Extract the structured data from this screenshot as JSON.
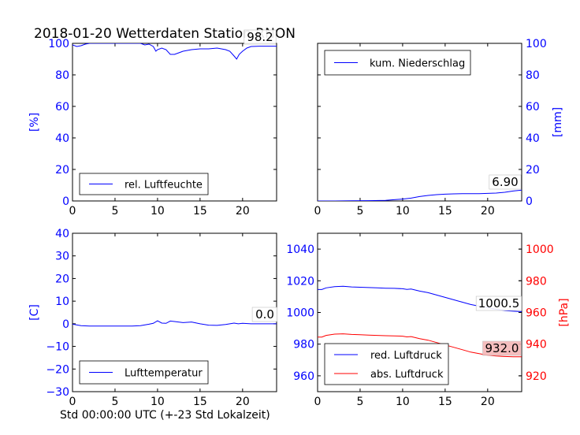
{
  "figure": {
    "title": "2018-01-20 Wetterdaten Station RNON",
    "xlabel": "Std 00:00:00 UTC (+-23 Std Lokalzeit)"
  },
  "chart_data": [
    {
      "id": "humidity",
      "type": "line",
      "ylabel": "[%]",
      "ylim": [
        0,
        100
      ],
      "yticks": [
        0,
        20,
        40,
        60,
        80,
        100
      ],
      "xlim": [
        0,
        24
      ],
      "xticks": [
        0,
        5,
        10,
        15,
        20
      ],
      "legend_position": "lower-left",
      "annotation": "98.2",
      "series": [
        {
          "name": "rel. Luftfeuchte",
          "color": "#0000ff",
          "x": [
            0,
            0.5,
            1,
            1.5,
            2,
            3,
            4,
            5,
            6,
            7,
            8,
            8.5,
            9,
            9.5,
            9.8,
            10,
            10.5,
            11,
            11.5,
            12,
            12.5,
            13,
            14,
            15,
            16,
            17,
            18,
            18.5,
            19,
            19.3,
            19.6,
            20,
            20.5,
            21,
            22,
            23,
            24
          ],
          "values": [
            99,
            98,
            98.5,
            99.5,
            100,
            100,
            100,
            100,
            100,
            100,
            100,
            99,
            99.5,
            98,
            95,
            96,
            97,
            96,
            93,
            93,
            94,
            95,
            96,
            96.5,
            96.5,
            97,
            96,
            95,
            92,
            90,
            93,
            95,
            97,
            98,
            98.2,
            98.2,
            98.2
          ]
        }
      ]
    },
    {
      "id": "precipitation",
      "type": "line",
      "ylabel": "[mm]",
      "ylim": [
        0,
        100
      ],
      "yticks": [
        0,
        20,
        40,
        60,
        80,
        100
      ],
      "xlim": [
        0,
        24
      ],
      "xticks": [
        0,
        5,
        10,
        15,
        20
      ],
      "y_axis_side": "right",
      "legend_position": "top-left",
      "annotation": "6.90",
      "series": [
        {
          "name": "kum. Niederschlag",
          "color": "#0000ff",
          "x": [
            0,
            2,
            4,
            6,
            8,
            9,
            10,
            11,
            12,
            13,
            14,
            15,
            16,
            17,
            18,
            19,
            20,
            21,
            22,
            23,
            24
          ],
          "values": [
            0,
            0,
            0.1,
            0.2,
            0.4,
            0.8,
            1.2,
            1.8,
            2.8,
            3.5,
            4,
            4.3,
            4.5,
            4.6,
            4.6,
            4.6,
            4.8,
            5,
            5.5,
            6.3,
            6.9
          ]
        }
      ]
    },
    {
      "id": "temperature",
      "type": "line",
      "ylabel": "[C]",
      "ylim": [
        -30,
        40
      ],
      "yticks": [
        -30,
        -20,
        -10,
        0,
        10,
        20,
        30,
        40
      ],
      "xlim": [
        0,
        24
      ],
      "xticks": [
        0,
        5,
        10,
        15,
        20
      ],
      "legend_position": "lower-left",
      "annotation": "0.0",
      "series": [
        {
          "name": "Lufttemperatur",
          "color": "#0000ff",
          "x": [
            0,
            1,
            2,
            3,
            4,
            5,
            6,
            7,
            8,
            9,
            9.5,
            10,
            10.5,
            11,
            11.5,
            12,
            13,
            14,
            15,
            16,
            17,
            18,
            19,
            19.5,
            20,
            21,
            22,
            23,
            24
          ],
          "values": [
            -0.2,
            -0.8,
            -1,
            -1,
            -1,
            -1,
            -1,
            -1,
            -0.8,
            -0.2,
            0.2,
            1.3,
            0.3,
            0.2,
            1.2,
            1,
            0.5,
            0.8,
            0,
            -0.6,
            -0.7,
            -0.3,
            0.3,
            0,
            0.2,
            0,
            0,
            0,
            0
          ]
        }
      ]
    },
    {
      "id": "pressure",
      "type": "line",
      "ylabel_right": "[hPa]",
      "ylim": [
        950,
        1050
      ],
      "yticks": [
        960,
        980,
        1000,
        1020,
        1040
      ],
      "ylim_right": [
        910,
        1010
      ],
      "yticks_right": [
        920,
        940,
        960,
        980,
        1000
      ],
      "xlim": [
        0,
        24
      ],
      "xticks": [
        0,
        5,
        10,
        15,
        20
      ],
      "legend_position": "lower-left",
      "annotations": [
        "1000.5",
        "932.0"
      ],
      "series": [
        {
          "name": "red. Luftdruck",
          "color": "#0000ff",
          "axis": "left",
          "x": [
            0,
            0.5,
            1,
            2,
            3,
            4,
            5,
            6,
            7,
            8,
            9,
            10,
            10.5,
            11,
            12,
            13,
            14,
            15,
            16,
            17,
            18,
            19,
            20,
            21,
            22,
            23,
            24
          ],
          "values": [
            1014.5,
            1014.5,
            1015.5,
            1016.3,
            1016.5,
            1016.1,
            1015.9,
            1015.7,
            1015.5,
            1015.3,
            1015.2,
            1015,
            1014.6,
            1014.8,
            1013.5,
            1012.5,
            1011,
            1009.5,
            1008,
            1006.5,
            1005,
            1004,
            1003,
            1002,
            1001.2,
            1000.8,
            1000.5
          ]
        },
        {
          "name": "abs. Luftdruck",
          "color": "#ff0000",
          "axis": "right",
          "x": [
            0,
            0.5,
            1,
            2,
            3,
            4,
            5,
            6,
            7,
            8,
            9,
            10,
            10.5,
            11,
            12,
            13,
            14,
            15,
            16,
            17,
            18,
            19,
            20,
            21,
            22,
            23,
            24
          ],
          "values": [
            944.5,
            944.5,
            945.5,
            946.3,
            946.5,
            946.1,
            945.9,
            945.7,
            945.5,
            945.3,
            945.2,
            945,
            944.6,
            944.8,
            943.5,
            942.5,
            941,
            939.5,
            938,
            936.5,
            935,
            934,
            933,
            932.5,
            932.2,
            932,
            932
          ]
        }
      ]
    }
  ]
}
